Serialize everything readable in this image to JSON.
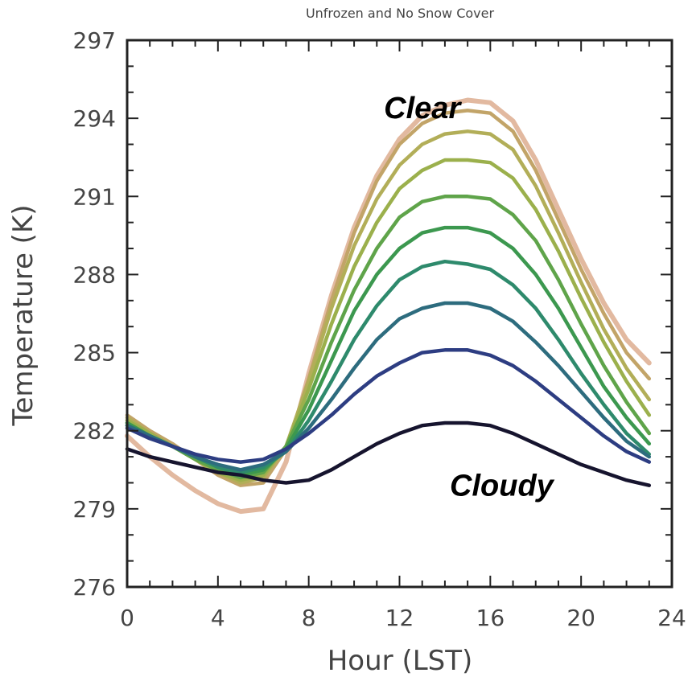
{
  "chart_data": {
    "type": "line",
    "title": "Unfrozen and No Snow Cover",
    "xlabel": "Hour (LST)",
    "ylabel": "Temperature (K)",
    "xlim": [
      0,
      24
    ],
    "ylim": [
      276,
      297
    ],
    "xticks": [
      "0",
      "4",
      "8",
      "12",
      "16",
      "20",
      "24"
    ],
    "yticks": [
      "276",
      "279",
      "282",
      "285",
      "288",
      "291",
      "294",
      "297"
    ],
    "grid": false,
    "annotations": [
      {
        "text": "Clear",
        "x": 13,
        "y": 294
      },
      {
        "text": "Cloudy",
        "x": 16.5,
        "y": 279.5
      }
    ],
    "x": [
      0,
      1,
      2,
      3,
      4,
      5,
      6,
      7,
      8,
      9,
      10,
      11,
      12,
      13,
      14,
      15,
      16,
      17,
      18,
      19,
      20,
      21,
      22,
      23
    ],
    "series": [
      {
        "color": "#e2b9a0",
        "values": [
          281.8,
          281.0,
          280.3,
          279.7,
          279.2,
          278.9,
          279.0,
          280.8,
          284.2,
          287.2,
          289.8,
          291.8,
          293.2,
          294.1,
          294.5,
          294.7,
          294.6,
          293.9,
          292.4,
          290.5,
          288.6,
          286.9,
          285.5,
          284.6
        ]
      },
      {
        "color": "#c2a468",
        "values": [
          282.6,
          282.0,
          281.5,
          280.9,
          280.3,
          279.9,
          280.0,
          281.3,
          284.0,
          287.0,
          289.6,
          291.6,
          293.0,
          293.8,
          294.2,
          294.3,
          294.2,
          293.5,
          292.0,
          290.1,
          288.2,
          286.5,
          285.0,
          284.0
        ]
      },
      {
        "color": "#b2ae58",
        "values": [
          282.5,
          281.9,
          281.4,
          280.9,
          280.4,
          280.0,
          280.2,
          281.4,
          283.9,
          286.7,
          289.1,
          290.9,
          292.2,
          293.0,
          293.4,
          293.5,
          293.4,
          292.8,
          291.4,
          289.6,
          287.7,
          285.9,
          284.4,
          283.2
        ]
      },
      {
        "color": "#9bb04c",
        "values": [
          282.4,
          281.9,
          281.4,
          280.9,
          280.4,
          280.1,
          280.3,
          281.4,
          283.6,
          286.1,
          288.3,
          290.0,
          291.3,
          292.0,
          292.4,
          292.4,
          292.3,
          291.7,
          290.5,
          288.9,
          287.1,
          285.4,
          283.9,
          282.6
        ]
      },
      {
        "color": "#5fa44a",
        "values": [
          282.3,
          281.8,
          281.4,
          280.9,
          280.5,
          280.2,
          280.4,
          281.4,
          283.2,
          285.4,
          287.4,
          289.0,
          290.2,
          290.8,
          291.0,
          291.0,
          290.9,
          290.3,
          289.3,
          287.8,
          286.1,
          284.5,
          283.1,
          281.9
        ]
      },
      {
        "color": "#3c984f",
        "values": [
          282.3,
          281.8,
          281.4,
          281.0,
          280.6,
          280.3,
          280.5,
          281.3,
          282.8,
          284.7,
          286.6,
          288.0,
          289.0,
          289.6,
          289.8,
          289.8,
          289.6,
          289.0,
          288.0,
          286.7,
          285.2,
          283.7,
          282.5,
          281.5
        ]
      },
      {
        "color": "#2e8a6c",
        "values": [
          282.2,
          281.8,
          281.4,
          281.0,
          280.6,
          280.4,
          280.6,
          281.2,
          282.4,
          283.9,
          285.5,
          286.8,
          287.8,
          288.3,
          288.5,
          288.4,
          288.2,
          287.6,
          286.7,
          285.5,
          284.2,
          283.0,
          281.9,
          281.1
        ]
      },
      {
        "color": "#2d6c7e",
        "values": [
          282.2,
          281.8,
          281.4,
          281.0,
          280.7,
          280.5,
          280.7,
          281.2,
          282.1,
          283.2,
          284.4,
          285.5,
          286.3,
          286.7,
          286.9,
          286.9,
          286.7,
          286.2,
          285.4,
          284.5,
          283.5,
          282.5,
          281.6,
          281.0
        ]
      },
      {
        "color": "#2d3d82",
        "values": [
          282.1,
          281.7,
          281.4,
          281.1,
          280.9,
          280.8,
          280.9,
          281.3,
          281.9,
          282.6,
          283.4,
          284.1,
          284.6,
          285.0,
          285.1,
          285.1,
          284.9,
          284.5,
          283.9,
          283.2,
          282.5,
          281.8,
          281.2,
          280.8
        ]
      },
      {
        "color": "#16142e",
        "values": [
          281.3,
          281.0,
          280.8,
          280.6,
          280.4,
          280.3,
          280.1,
          280.0,
          280.1,
          280.5,
          281.0,
          281.5,
          281.9,
          282.2,
          282.3,
          282.3,
          282.2,
          281.9,
          281.5,
          281.1,
          280.7,
          280.4,
          280.1,
          279.9
        ]
      }
    ]
  }
}
